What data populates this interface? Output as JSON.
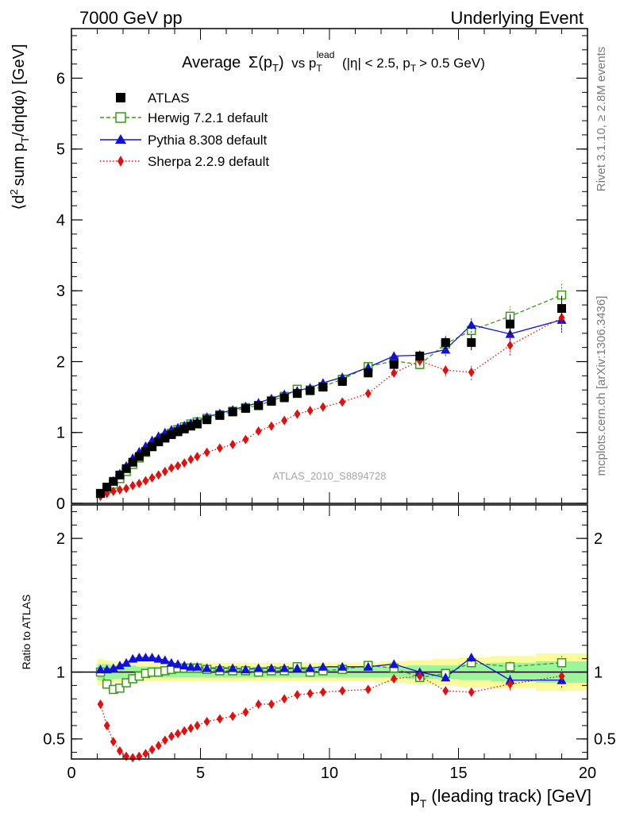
{
  "header": {
    "energy": "7000 GeV pp",
    "process": "Underlying Event"
  },
  "side_labels": {
    "rivet": "Rivet 3.1.10, ≥ 2.8M events",
    "mcplots": "mcplots.cern.ch [arXiv:1306.3436]"
  },
  "analysis_tag": "ATLAS_2010_S8894728",
  "colors": {
    "data": "#000000",
    "herwig": "#3a9a12",
    "pythia": "#1010d8",
    "sherpa": "#e01010",
    "band_inner": "#9cf59c",
    "band_outer": "#fbfb9c"
  },
  "chart_data": [
    {
      "type": "scatter",
      "title_parts": {
        "lead": "Average",
        "sigma": "Σ(p",
        "sigma_sub": "T",
        "close": ")",
        "vs": "vs p",
        "vs_sub": "T",
        "vs_sup": "lead",
        "cuts_a": "(|η| < 2.5, p",
        "cuts_sub": "T",
        "cuts_b": "> 0.5 GeV)"
      },
      "ylabel_parts": {
        "a": "⟨d",
        "sup": "2",
        "b": "sum p",
        "sub": "T",
        "c": "/dηdφ⟩ [GeV]"
      },
      "xlim": [
        0,
        20
      ],
      "ylim": [
        0,
        6.7
      ],
      "yticks": [
        0,
        1,
        2,
        3,
        4,
        5,
        6
      ],
      "x": [
        1.125,
        1.375,
        1.625,
        1.875,
        2.125,
        2.375,
        2.625,
        2.875,
        3.125,
        3.375,
        3.625,
        3.875,
        4.125,
        4.375,
        4.625,
        4.875,
        5.25,
        5.75,
        6.25,
        6.75,
        7.25,
        7.75,
        8.25,
        8.75,
        9.25,
        9.75,
        10.5,
        11.5,
        12.5,
        13.5,
        14.5,
        15.5,
        17.0,
        19.0
      ],
      "series": [
        {
          "name": "ATLAS",
          "values": [
            0.14,
            0.23,
            0.31,
            0.4,
            0.49,
            0.58,
            0.66,
            0.73,
            0.8,
            0.87,
            0.92,
            0.97,
            1.01,
            1.05,
            1.09,
            1.12,
            1.18,
            1.24,
            1.29,
            1.34,
            1.38,
            1.44,
            1.49,
            1.55,
            1.59,
            1.64,
            1.72,
            1.84,
            1.96,
            2.08,
            2.27,
            2.27,
            2.53,
            2.75
          ]
        },
        {
          "name": "Herwig 7.2.1 default",
          "values": [
            0.14,
            0.21,
            0.27,
            0.35,
            0.45,
            0.55,
            0.64,
            0.72,
            0.8,
            0.87,
            0.93,
            0.99,
            1.04,
            1.08,
            1.12,
            1.15,
            1.2,
            1.25,
            1.3,
            1.35,
            1.38,
            1.45,
            1.51,
            1.61,
            1.6,
            1.65,
            1.75,
            1.93,
            2.01,
            1.96,
            2.25,
            2.44,
            2.64,
            2.94
          ]
        },
        {
          "name": "Pythia 8.308 default",
          "values": [
            0.14,
            0.23,
            0.32,
            0.42,
            0.53,
            0.64,
            0.73,
            0.81,
            0.89,
            0.95,
            1.0,
            1.04,
            1.07,
            1.1,
            1.13,
            1.16,
            1.22,
            1.27,
            1.32,
            1.37,
            1.42,
            1.48,
            1.54,
            1.59,
            1.63,
            1.7,
            1.78,
            1.92,
            2.08,
            2.09,
            2.17,
            2.52,
            2.39,
            2.59
          ]
        },
        {
          "name": "Sherpa 2.2.9 default",
          "values": [
            0.1,
            0.14,
            0.17,
            0.19,
            0.21,
            0.25,
            0.28,
            0.32,
            0.36,
            0.4,
            0.45,
            0.5,
            0.53,
            0.57,
            0.62,
            0.66,
            0.72,
            0.78,
            0.83,
            0.9,
            1.02,
            1.09,
            1.17,
            1.26,
            1.31,
            1.36,
            1.43,
            1.55,
            1.84,
            2.01,
            1.88,
            1.85,
            2.23,
            2.62
          ]
        }
      ]
    },
    {
      "type": "scatter",
      "ylabel": "Ratio to ATLAS",
      "xlabel_parts": {
        "a": "p",
        "sub": "T",
        "b": "(leading track) [GeV]"
      },
      "xlim": [
        0,
        20
      ],
      "xticks": [
        0,
        5,
        10,
        15,
        20
      ],
      "ylim": [
        0.35,
        2.25
      ],
      "yticks": [
        0.5,
        1,
        2
      ],
      "ytick_labels": [
        "0.5",
        "1",
        "2"
      ],
      "x": [
        1.125,
        1.375,
        1.625,
        1.875,
        2.125,
        2.375,
        2.625,
        2.875,
        3.125,
        3.375,
        3.625,
        3.875,
        4.125,
        4.375,
        4.625,
        4.875,
        5.25,
        5.75,
        6.25,
        6.75,
        7.25,
        7.75,
        8.25,
        8.75,
        9.25,
        9.75,
        10.5,
        11.5,
        12.5,
        13.5,
        14.5,
        15.5,
        17.0,
        19.0
      ],
      "series": [
        {
          "name": "Herwig 7.2.1 default",
          "values": [
            1.0,
            0.91,
            0.87,
            0.88,
            0.92,
            0.95,
            0.97,
            0.99,
            1.0,
            1.0,
            1.01,
            1.02,
            1.03,
            1.03,
            1.03,
            1.03,
            1.02,
            1.01,
            1.01,
            1.01,
            1.0,
            1.01,
            1.01,
            1.04,
            1.0,
            1.01,
            1.02,
            1.05,
            1.03,
            0.96,
            0.99,
            1.07,
            1.04,
            1.07
          ]
        },
        {
          "name": "Pythia 8.308 default",
          "values": [
            1.02,
            1.02,
            1.03,
            1.05,
            1.07,
            1.1,
            1.11,
            1.11,
            1.11,
            1.1,
            1.09,
            1.07,
            1.06,
            1.05,
            1.04,
            1.04,
            1.03,
            1.03,
            1.03,
            1.02,
            1.03,
            1.03,
            1.03,
            1.03,
            1.03,
            1.04,
            1.04,
            1.04,
            1.06,
            1.0,
            0.96,
            1.11,
            0.94,
            0.94
          ]
        },
        {
          "name": "Sherpa 2.2.9 default",
          "values": [
            0.76,
            0.6,
            0.48,
            0.41,
            0.37,
            0.36,
            0.37,
            0.39,
            0.42,
            0.45,
            0.49,
            0.52,
            0.54,
            0.56,
            0.58,
            0.6,
            0.63,
            0.65,
            0.67,
            0.7,
            0.76,
            0.76,
            0.8,
            0.83,
            0.84,
            0.85,
            0.86,
            0.87,
            0.95,
            0.97,
            0.86,
            0.85,
            0.91,
            0.97
          ]
        }
      ],
      "band_inner_halfwidth": [
        0.06,
        0.06,
        0.05,
        0.05,
        0.05,
        0.05,
        0.04,
        0.04,
        0.04,
        0.04,
        0.04,
        0.04,
        0.04,
        0.04,
        0.04,
        0.04,
        0.04,
        0.04,
        0.04,
        0.04,
        0.04,
        0.04,
        0.04,
        0.04,
        0.04,
        0.04,
        0.04,
        0.04,
        0.04,
        0.05,
        0.05,
        0.06,
        0.07,
        0.08
      ],
      "band_outer_halfwidth": [
        0.1,
        0.09,
        0.08,
        0.08,
        0.07,
        0.07,
        0.07,
        0.07,
        0.07,
        0.07,
        0.07,
        0.07,
        0.07,
        0.07,
        0.07,
        0.07,
        0.07,
        0.07,
        0.07,
        0.07,
        0.07,
        0.07,
        0.07,
        0.07,
        0.07,
        0.07,
        0.07,
        0.07,
        0.08,
        0.09,
        0.1,
        0.11,
        0.12,
        0.14
      ]
    }
  ]
}
